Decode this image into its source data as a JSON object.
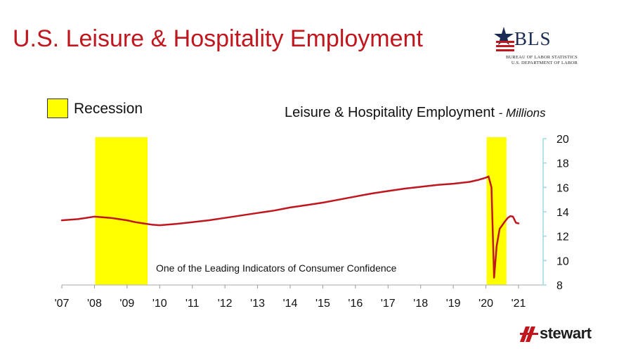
{
  "title": "U.S. Leisure & Hospitality Employment",
  "logo": {
    "name": "BLS",
    "line1": "BUREAU OF LABOR STATISTICS",
    "line2": "U.S. DEPARTMENT OF LABOR"
  },
  "footer_logo": "stewart",
  "colors": {
    "title": "#c0161e",
    "series": "#c0161e",
    "recession": "#ffff00",
    "axis": "#9fd8e0"
  },
  "chart_data": {
    "type": "line",
    "title": "Leisure & Hospitality Employment",
    "title_unit": "- Millions",
    "annotation": "One of the Leading Indicators of Consumer Confidence",
    "legend": {
      "label": "Recession",
      "position": "top-left"
    },
    "x_ticks": [
      "'07",
      "'08",
      "'09",
      "'10",
      "'11",
      "'12",
      "'13",
      "'14",
      "'15",
      "'16",
      "'17",
      "'18",
      "'19",
      "'20",
      "'21"
    ],
    "xlim": [
      2007,
      2021.5
    ],
    "y_ticks": [
      "8",
      "10",
      "12",
      "14",
      "16",
      "18",
      "20"
    ],
    "ylim": [
      8,
      20
    ],
    "y_axis_side": "right",
    "grid": false,
    "recessions": [
      {
        "start": 2008.0,
        "end": 2009.5
      },
      {
        "start": 2020.0,
        "end": 2020.5
      }
    ],
    "series": [
      {
        "x": [
          2007.0,
          2007.5,
          2008.0,
          2008.25,
          2008.5,
          2008.75,
          2009.0,
          2009.25,
          2009.5,
          2009.75,
          2010.0,
          2010.5,
          2011.0,
          2011.5,
          2012.0,
          2012.5,
          2013.0,
          2013.5,
          2014.0,
          2014.5,
          2015.0,
          2015.5,
          2016.0,
          2016.5,
          2017.0,
          2017.5,
          2018.0,
          2018.5,
          2019.0,
          2019.5,
          2019.75,
          2020.0,
          2020.08,
          2020.17,
          2020.25,
          2020.33,
          2020.42,
          2020.5,
          2020.58,
          2020.67,
          2020.75,
          2020.83,
          2020.92,
          2021.0
        ],
        "values": [
          13.3,
          13.4,
          13.6,
          13.55,
          13.5,
          13.4,
          13.3,
          13.15,
          13.05,
          12.95,
          12.9,
          13.0,
          13.15,
          13.3,
          13.5,
          13.7,
          13.9,
          14.1,
          14.35,
          14.55,
          14.75,
          15.0,
          15.25,
          15.5,
          15.7,
          15.9,
          16.05,
          16.2,
          16.3,
          16.45,
          16.6,
          16.8,
          16.9,
          16.0,
          8.6,
          11.2,
          12.6,
          12.9,
          13.2,
          13.5,
          13.65,
          13.6,
          13.1,
          13.05
        ]
      }
    ]
  }
}
